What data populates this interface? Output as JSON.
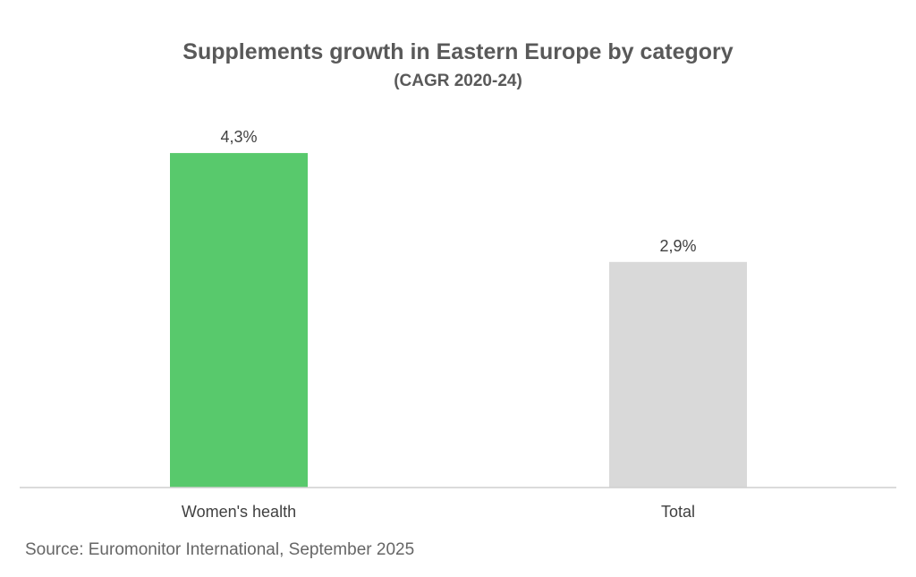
{
  "chart_data": {
    "type": "bar",
    "title": "Supplements growth in Eastern Europe by category",
    "subtitle": "(CAGR 2020-24)",
    "categories": [
      "Women's health",
      "Total"
    ],
    "values": [
      4.3,
      2.9
    ],
    "data_labels": [
      "4,3%",
      "2,9%"
    ],
    "bar_colors": [
      "#58c96c",
      "#d9d9d9"
    ],
    "ylim": [
      0,
      4.6
    ],
    "grid": false,
    "legend": "none",
    "xlabel": "",
    "ylabel": ""
  },
  "source": "Source: Euromonitor International, September 2025",
  "colors": {
    "axis_line": "#cfcfcf",
    "text": "#404040",
    "title": "#595959"
  }
}
